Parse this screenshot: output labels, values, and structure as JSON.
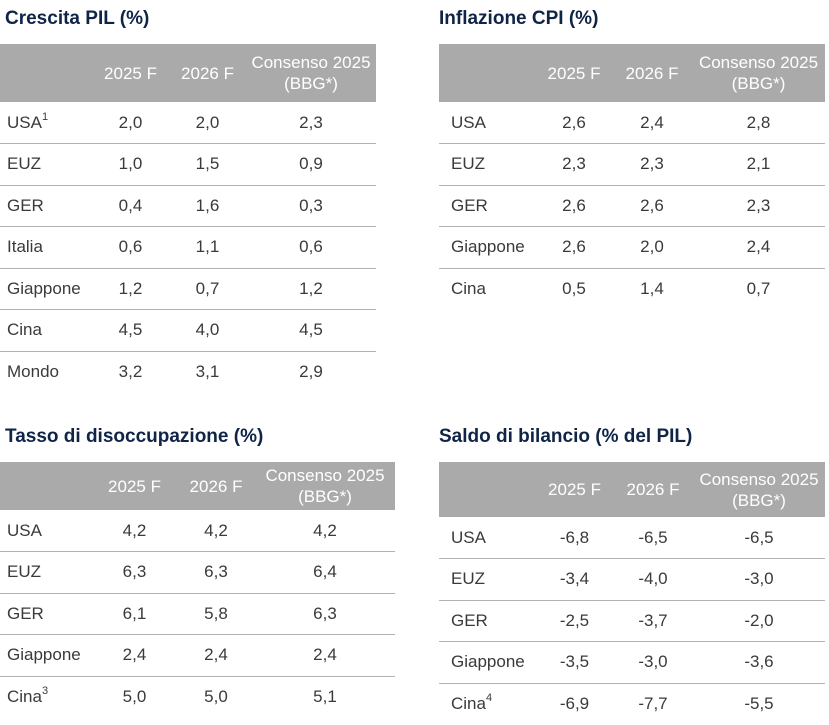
{
  "tables": [
    {
      "title": "Crescita PIL (%)",
      "headers": [
        "",
        "2025 F",
        "2026 F",
        "Consenso 2025 (BBG*)"
      ],
      "rows": [
        {
          "label": "USA",
          "sup": "1",
          "values": [
            "2,0",
            "2,0",
            "2,3"
          ]
        },
        {
          "label": "EUZ",
          "sup": "",
          "values": [
            "1,0",
            "1,5",
            "0,9"
          ]
        },
        {
          "label": "GER",
          "sup": "",
          "values": [
            "0,4",
            "1,6",
            "0,3"
          ]
        },
        {
          "label": "Italia",
          "sup": "",
          "values": [
            "0,6",
            "1,1",
            "0,6"
          ]
        },
        {
          "label": "Giappone",
          "sup": "",
          "values": [
            "1,2",
            "0,7",
            "1,2"
          ]
        },
        {
          "label": "Cina",
          "sup": "",
          "values": [
            "4,5",
            "4,0",
            "4,5"
          ]
        },
        {
          "label": "Mondo",
          "sup": "",
          "values": [
            "3,2",
            "3,1",
            "2,9"
          ]
        }
      ]
    },
    {
      "title": "Inflazione CPI (%)",
      "headers": [
        "",
        "2025 F",
        "2026 F",
        "Consenso 2025 (BBG*)"
      ],
      "rows": [
        {
          "label": "USA",
          "sup": "",
          "values": [
            "2,6",
            "2,4",
            "2,8"
          ]
        },
        {
          "label": "EUZ",
          "sup": "",
          "values": [
            "2,3",
            "2,3",
            "2,1"
          ]
        },
        {
          "label": "GER",
          "sup": "",
          "values": [
            "2,6",
            "2,6",
            "2,3"
          ]
        },
        {
          "label": "Giappone",
          "sup": "",
          "values": [
            "2,6",
            "2,0",
            "2,4"
          ]
        },
        {
          "label": "Cina",
          "sup": "",
          "values": [
            "0,5",
            "1,4",
            "0,7"
          ]
        }
      ]
    },
    {
      "title": "Tasso di disoccupazione (%)",
      "headers": [
        "",
        "2025 F",
        "2026 F",
        "Consenso 2025 (BBG*)"
      ],
      "rows": [
        {
          "label": "USA",
          "sup": "",
          "values": [
            "4,2",
            "4,2",
            "4,2"
          ]
        },
        {
          "label": "EUZ",
          "sup": "",
          "values": [
            "6,3",
            "6,3",
            "6,4"
          ]
        },
        {
          "label": "GER",
          "sup": "",
          "values": [
            "6,1",
            "5,8",
            "6,3"
          ]
        },
        {
          "label": "Giappone",
          "sup": "",
          "values": [
            "2,4",
            "2,4",
            "2,4"
          ]
        },
        {
          "label": "Cina",
          "sup": "3",
          "values": [
            "5,0",
            "5,0",
            "5,1"
          ]
        }
      ]
    },
    {
      "title": "Saldo di bilancio (% del PIL)",
      "headers": [
        "",
        "2025 F",
        "2026 F",
        "Consenso 2025 (BBG*)"
      ],
      "rows": [
        {
          "label": "USA",
          "sup": "",
          "values": [
            "-6,8",
            "-6,5",
            "-6,5"
          ]
        },
        {
          "label": "EUZ",
          "sup": "",
          "values": [
            "-3,4",
            "-4,0",
            "-3,0"
          ]
        },
        {
          "label": "GER",
          "sup": "",
          "values": [
            "-2,5",
            "-3,7",
            "-2,0"
          ]
        },
        {
          "label": "Giappone",
          "sup": "",
          "values": [
            "-3,5",
            "-3,0",
            "-3,6"
          ]
        },
        {
          "label": "Cina",
          "sup": "4",
          "values": [
            "-6,9",
            "-7,7",
            "-5,5"
          ]
        }
      ]
    }
  ]
}
